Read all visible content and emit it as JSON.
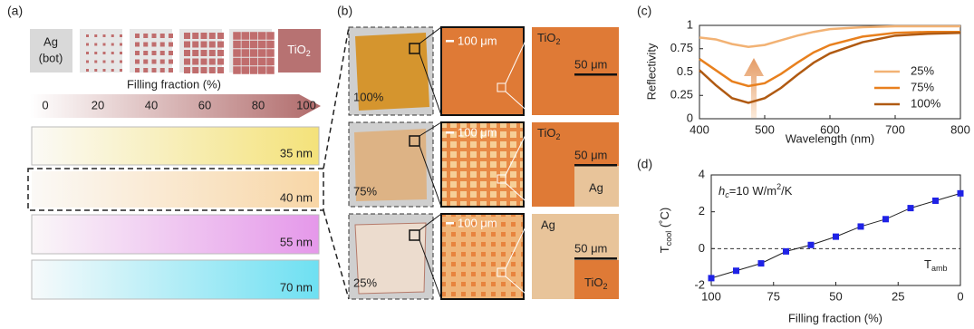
{
  "panel_labels": [
    "(a)",
    "(b)",
    "(c)",
    "(d)"
  ],
  "panel_a": {
    "ag_label": [
      "Ag",
      "(bot)"
    ],
    "tio2_label": {
      "main": "TiO",
      "sub": "2"
    },
    "colorbar_title": "Filling fraction (%)",
    "colorbar_ticks": [
      0,
      20,
      40,
      60,
      80,
      100
    ],
    "thickness_labels": [
      "35 nm",
      "40 nm",
      "55 nm",
      "70 nm"
    ]
  },
  "panel_b": {
    "fractions": [
      "100%",
      "75%",
      "25%"
    ],
    "scale_large": "100 μm",
    "scale_small": "50 μm",
    "tio2": {
      "main": "TiO",
      "sub": "2"
    },
    "ag": "Ag"
  },
  "chart_data": [
    {
      "type": "line",
      "xlabel": "Wavelength (nm)",
      "ylabel": "Reflectivity",
      "x": [
        400,
        425,
        450,
        475,
        500,
        525,
        550,
        575,
        600,
        650,
        700,
        750,
        800
      ],
      "series": [
        {
          "name": "25%",
          "color": "#f2b274",
          "values": [
            0.87,
            0.85,
            0.8,
            0.77,
            0.79,
            0.84,
            0.89,
            0.93,
            0.96,
            0.98,
            0.99,
            0.99,
            0.99
          ]
        },
        {
          "name": "75%",
          "color": "#e8801e",
          "values": [
            0.64,
            0.52,
            0.4,
            0.35,
            0.38,
            0.48,
            0.6,
            0.71,
            0.79,
            0.88,
            0.92,
            0.93,
            0.93
          ]
        },
        {
          "name": "100%",
          "color": "#b05a12",
          "values": [
            0.52,
            0.36,
            0.22,
            0.17,
            0.22,
            0.33,
            0.47,
            0.6,
            0.7,
            0.82,
            0.89,
            0.91,
            0.92
          ]
        }
      ],
      "xlim": [
        400,
        800
      ],
      "ylim": [
        0,
        1
      ],
      "xticks": [
        400,
        500,
        600,
        700,
        800
      ],
      "yticks": [
        0,
        0.25,
        0.5,
        0.75,
        1
      ],
      "legend": "lower right",
      "grid": false
    },
    {
      "type": "line",
      "xlabel": "Filling fraction (%)",
      "ylabel": {
        "main": "T",
        "sub": "cool",
        "unit": " (˚C)"
      },
      "annotation": {
        "h": "h",
        "sub": "c",
        "text": "=10 W/m",
        "sup": "2",
        "end": "/K"
      },
      "refline": 0,
      "refline_label": {
        "main": "T",
        "sub": "amb"
      },
      "marker": "square",
      "x": [
        100,
        90,
        80,
        70,
        60,
        50,
        40,
        30,
        20,
        10,
        0
      ],
      "series": [
        {
          "color": "#1f22e6",
          "values": [
            -1.6,
            -1.2,
            -0.8,
            -0.15,
            0.2,
            0.65,
            1.2,
            1.6,
            2.2,
            2.6,
            3.0
          ]
        }
      ],
      "xlim": [
        100,
        0
      ],
      "ylim": [
        -2,
        4
      ],
      "xticks": [
        100,
        75,
        50,
        25,
        0
      ],
      "yticks": [
        -2,
        0,
        2,
        4
      ],
      "grid": false
    }
  ]
}
